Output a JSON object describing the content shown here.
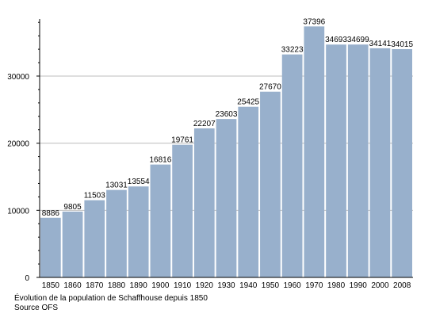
{
  "chart_data": {
    "type": "bar",
    "categories": [
      "1850",
      "1860",
      "1870",
      "1880",
      "1890",
      "1900",
      "1910",
      "1920",
      "1930",
      "1940",
      "1950",
      "1960",
      "1970",
      "1980",
      "1990",
      "2000",
      "2008"
    ],
    "values": [
      8886,
      9805,
      11503,
      13031,
      13554,
      16816,
      19761,
      22207,
      23603,
      25425,
      27670,
      33223,
      37396,
      34693,
      34699,
      34141,
      34015
    ],
    "title": "",
    "xlabel": "",
    "ylabel": "",
    "ylim": [
      0,
      38500
    ],
    "yticks": [
      0,
      10000,
      20000,
      30000
    ],
    "grid": true,
    "bar_color": "#98b0cc",
    "grid_color": "#bdbdbd"
  },
  "caption": {
    "line": "Évolution de la population de Schaffhouse depuis 1850",
    "source": "Source OFS"
  }
}
